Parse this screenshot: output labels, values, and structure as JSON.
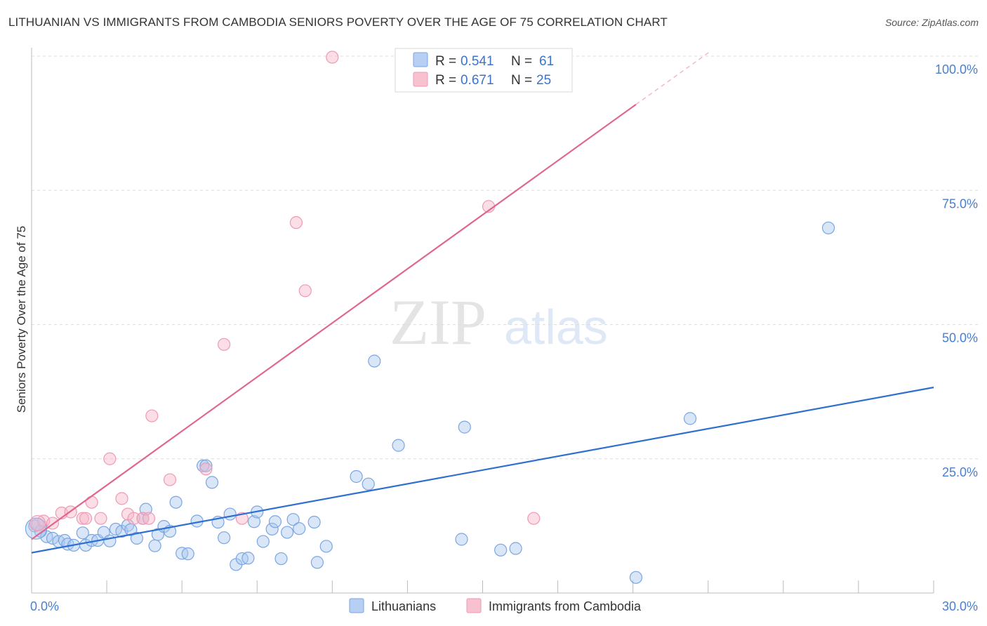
{
  "title": "LITHUANIAN VS IMMIGRANTS FROM CAMBODIA SENIORS POVERTY OVER THE AGE OF 75 CORRELATION CHART",
  "source": "Source: ZipAtlas.com",
  "watermark": {
    "zip": "ZIP",
    "atlas": "atlas"
  },
  "legend_box": {
    "rows": [
      {
        "r_label": "R =",
        "r_value": "0.541",
        "n_label": "N =",
        "n_value": "61",
        "color": "#a9c7f0"
      },
      {
        "r_label": "R =",
        "r_value": "0.671",
        "n_label": "N =",
        "n_value": "25",
        "color": "#f7b6c8"
      }
    ]
  },
  "bottom_legend": [
    {
      "label": "Lithuanians",
      "color": "#a9c7f0"
    },
    {
      "label": "Immigrants from Cambodia",
      "color": "#f7b6c8"
    }
  ],
  "chart_data": {
    "type": "scatter",
    "title": "LITHUANIAN VS IMMIGRANTS FROM CAMBODIA SENIORS POVERTY OVER THE AGE OF 75 CORRELATION CHART",
    "xlabel": "",
    "ylabel": "Seniors Poverty Over the Age of 75",
    "xlim": [
      0,
      30
    ],
    "ylim": [
      0,
      100
    ],
    "x_tick_labels": [
      {
        "value": 0,
        "label": "0.0%"
      },
      {
        "value": 30,
        "label": "30.0%"
      }
    ],
    "y_tick_labels": [
      {
        "value": 25,
        "label": "25.0%"
      },
      {
        "value": 50,
        "label": "50.0%"
      },
      {
        "value": 75,
        "label": "75.0%"
      },
      {
        "value": 100,
        "label": "100.0%"
      }
    ],
    "series": [
      {
        "name": "Lithuanians",
        "color": "#a9c7f0",
        "stroke": "#7aa6e2",
        "line_color": "#2f6fd0",
        "trend": {
          "x0": 0,
          "y0": 7.5,
          "x1": 30,
          "y1": 38.3
        },
        "points": [
          [
            0.1,
            12.5
          ],
          [
            0.3,
            11.5
          ],
          [
            0.5,
            10.5
          ],
          [
            0.7,
            10.2
          ],
          [
            0.9,
            9.6
          ],
          [
            1.1,
            9.8
          ],
          [
            1.2,
            9.1
          ],
          [
            1.4,
            8.9
          ],
          [
            1.7,
            11.2
          ],
          [
            1.8,
            8.9
          ],
          [
            2.0,
            9.8
          ],
          [
            2.2,
            9.8
          ],
          [
            2.4,
            11.3
          ],
          [
            2.6,
            9.7
          ],
          [
            2.8,
            11.9
          ],
          [
            3.0,
            11.5
          ],
          [
            3.2,
            12.6
          ],
          [
            3.3,
            11.8
          ],
          [
            3.5,
            10.2
          ],
          [
            3.7,
            13.9
          ],
          [
            3.8,
            15.6
          ],
          [
            4.1,
            8.8
          ],
          [
            4.2,
            10.9
          ],
          [
            4.4,
            12.4
          ],
          [
            4.6,
            11.5
          ],
          [
            4.8,
            16.9
          ],
          [
            5.0,
            7.4
          ],
          [
            5.2,
            7.3
          ],
          [
            5.5,
            13.4
          ],
          [
            5.7,
            23.7
          ],
          [
            5.8,
            23.7
          ],
          [
            6.0,
            20.6
          ],
          [
            6.2,
            13.2
          ],
          [
            6.4,
            10.3
          ],
          [
            6.6,
            14.7
          ],
          [
            6.8,
            5.3
          ],
          [
            7.0,
            6.4
          ],
          [
            7.2,
            6.5
          ],
          [
            7.4,
            13.3
          ],
          [
            7.5,
            15.1
          ],
          [
            7.7,
            9.6
          ],
          [
            8.0,
            11.9
          ],
          [
            8.1,
            13.3
          ],
          [
            8.3,
            6.4
          ],
          [
            8.5,
            11.3
          ],
          [
            8.7,
            13.7
          ],
          [
            8.9,
            12.0
          ],
          [
            9.4,
            13.2
          ],
          [
            9.5,
            5.7
          ],
          [
            9.8,
            8.7
          ],
          [
            10.8,
            21.7
          ],
          [
            11.2,
            20.3
          ],
          [
            11.4,
            43.2
          ],
          [
            12.2,
            27.5
          ],
          [
            14.3,
            10.0
          ],
          [
            14.4,
            30.9
          ],
          [
            15.6,
            8.0
          ],
          [
            16.1,
            8.3
          ],
          [
            20.1,
            2.9
          ],
          [
            21.9,
            32.5
          ],
          [
            26.5,
            68.0
          ]
        ]
      },
      {
        "name": "Immigrants from Cambodia",
        "color": "#f7b6c8",
        "stroke": "#ee9ab4",
        "line_color": "#e06690",
        "trend": {
          "x0": 0,
          "y0": 10.0,
          "x1": 20.1,
          "y1": 91.0
        },
        "trend_dashed": {
          "x0": 20.1,
          "y0": 91.0,
          "x1": 22.6,
          "y1": 101.0
        },
        "points": [
          [
            0.2,
            12.8
          ],
          [
            0.4,
            13.4
          ],
          [
            0.7,
            13.0
          ],
          [
            1.0,
            14.9
          ],
          [
            1.3,
            15.1
          ],
          [
            1.7,
            13.9
          ],
          [
            1.8,
            13.9
          ],
          [
            2.0,
            16.9
          ],
          [
            2.3,
            13.9
          ],
          [
            2.6,
            25.0
          ],
          [
            3.0,
            17.6
          ],
          [
            3.2,
            14.7
          ],
          [
            3.4,
            13.9
          ],
          [
            3.7,
            13.9
          ],
          [
            3.9,
            13.9
          ],
          [
            4.0,
            33.0
          ],
          [
            4.6,
            21.1
          ],
          [
            5.8,
            23.1
          ],
          [
            6.4,
            46.3
          ],
          [
            7.0,
            13.9
          ],
          [
            8.8,
            69.0
          ],
          [
            9.1,
            56.3
          ],
          [
            10.0,
            99.8
          ],
          [
            15.2,
            72.0
          ],
          [
            16.7,
            13.9
          ]
        ]
      }
    ]
  }
}
